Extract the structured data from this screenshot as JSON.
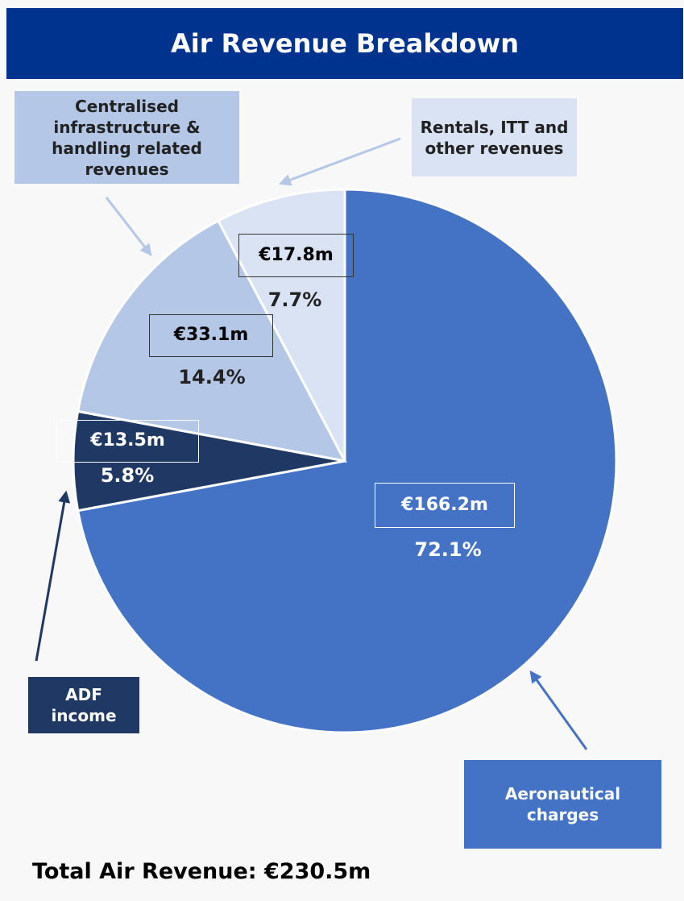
{
  "chart_data": {
    "type": "pie",
    "title": "Air Revenue Breakdown",
    "categories": [
      "Aeronautical charges",
      "ADF income",
      "Centralised infrastructure & handling related revenues",
      "Rentals, ITT and other revenues"
    ],
    "values": [
      166.2,
      13.5,
      33.1,
      17.8
    ],
    "value_labels": [
      "€166.2m",
      "€13.5m",
      "€33.1m",
      "€17.8m"
    ],
    "percent_values": [
      72.1,
      5.8,
      14.4,
      7.7
    ],
    "percent_labels": [
      "72.1%",
      "5.8%",
      "14.4%",
      "7.7%"
    ],
    "colors": [
      "#4472c4",
      "#1f3864",
      "#b4c7e7",
      "#dae3f3"
    ],
    "total_label": "Total Air Revenue: €230.5m"
  }
}
